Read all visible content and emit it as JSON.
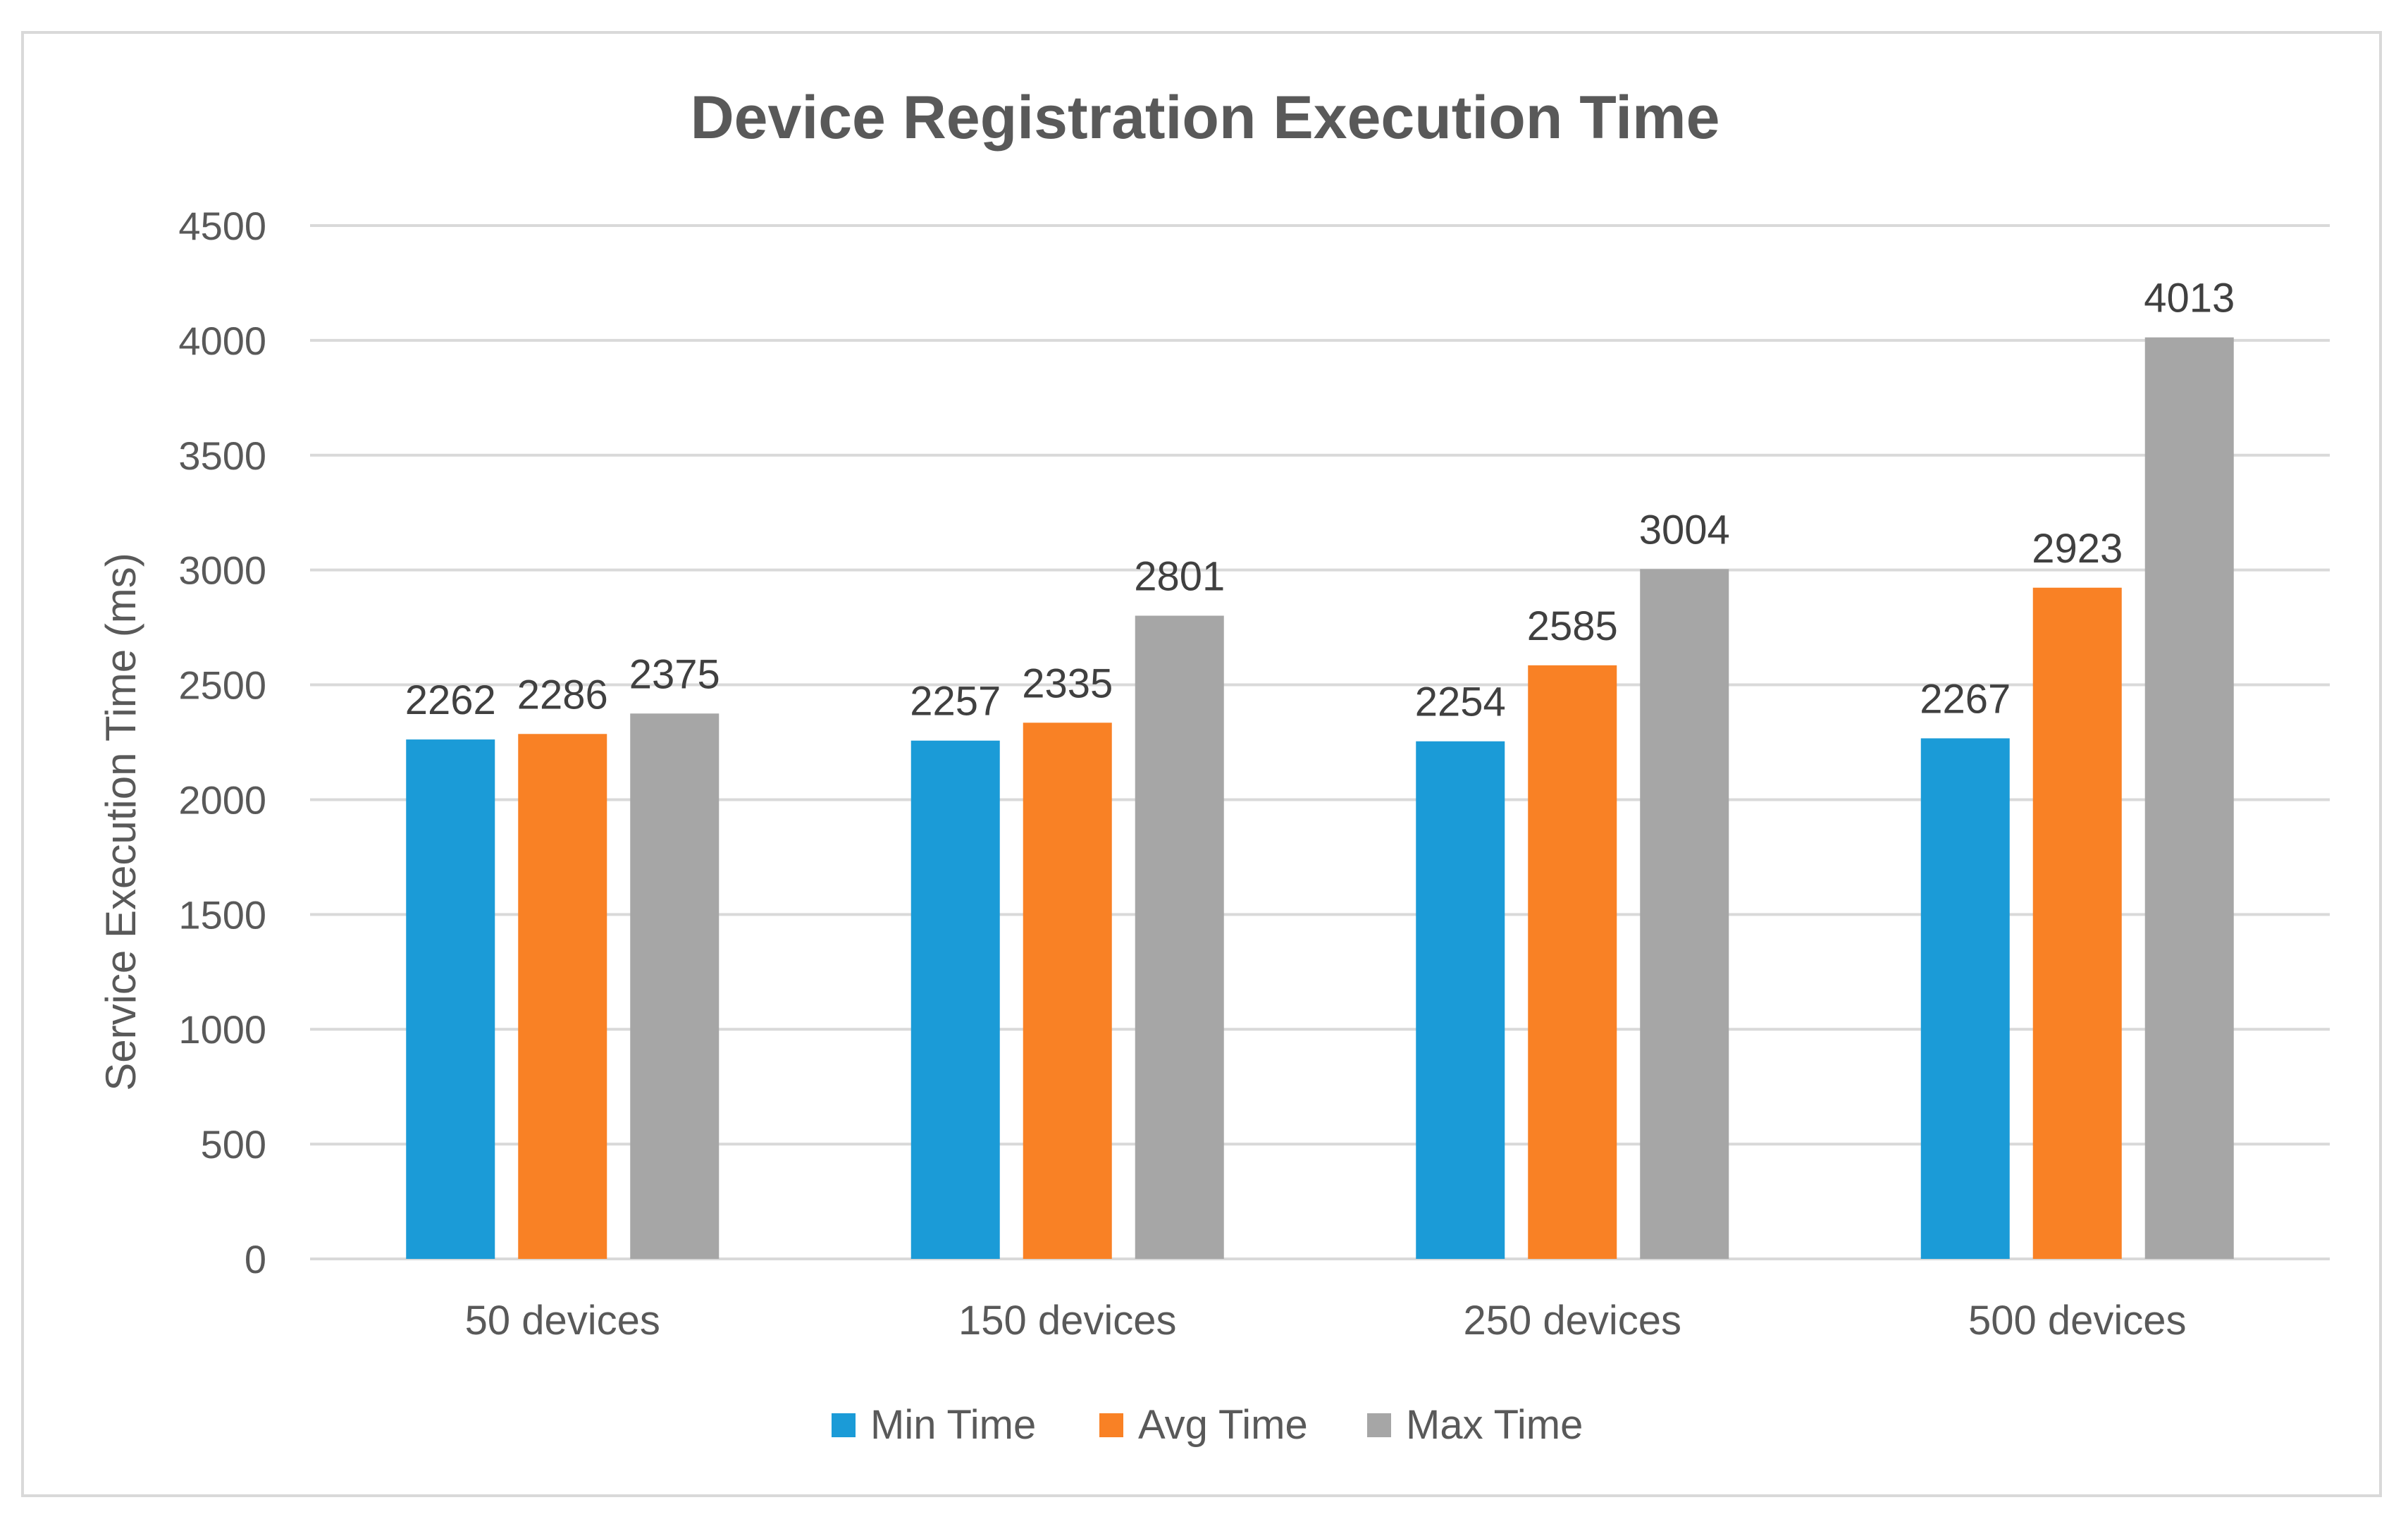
{
  "chart_data": {
    "type": "bar",
    "title": "Device Registration Execution Time",
    "xlabel": "",
    "ylabel": "Service Execution Time (ms)",
    "ylim": [
      0,
      4500
    ],
    "yticks": [
      0,
      500,
      1000,
      1500,
      2000,
      2500,
      3000,
      3500,
      4000,
      4500
    ],
    "grid": true,
    "legend_position": "bottom",
    "categories": [
      "50 devices",
      "150 devices",
      "250 devices",
      "500 devices"
    ],
    "series": [
      {
        "name": "Min Time",
        "color": "#1b9bd7",
        "values": [
          2262,
          2257,
          2254,
          2267
        ]
      },
      {
        "name": "Avg Time",
        "color": "#f98125",
        "values": [
          2286,
          2335,
          2585,
          2923
        ]
      },
      {
        "name": "Max Time",
        "color": "#a6a6a6",
        "values": [
          2375,
          2801,
          3004,
          4013
        ]
      }
    ]
  }
}
